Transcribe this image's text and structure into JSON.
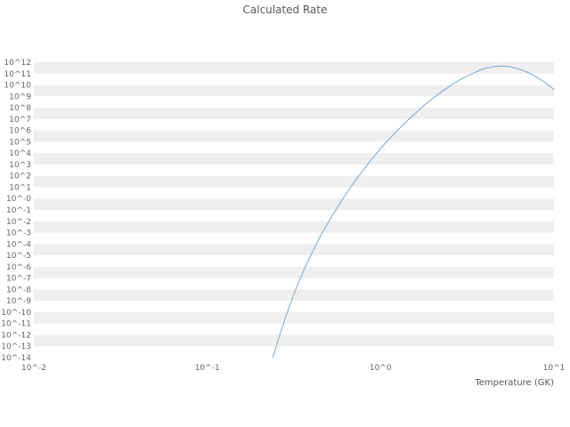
{
  "title": "Calculated Rate",
  "colors": {
    "background": "#ffffff",
    "band": "#efefef",
    "title_text": "#595959",
    "tick_text": "#666666",
    "line": "#74a9d8"
  },
  "chart_data": {
    "type": "line",
    "title": "Calculated Rate",
    "xlabel": "Temperature (GK)",
    "ylabel": "",
    "x_scale": "log10",
    "y_scale": "log10",
    "x_range_log10": [
      -2,
      1
    ],
    "y_range_log10": [
      -14,
      12
    ],
    "x_ticks_log10": [
      -2,
      -1,
      0,
      1
    ],
    "x_tick_labels": [
      "10^-2",
      "10^-1",
      "10^0",
      "10^1"
    ],
    "y_ticks_log10": [
      12,
      11,
      10,
      9,
      8,
      7,
      6,
      5,
      4,
      3,
      2,
      1,
      0,
      -1,
      -2,
      -3,
      -4,
      -5,
      -6,
      -7,
      -8,
      -9,
      -10,
      -11,
      -12,
      -13,
      -14
    ],
    "y_tick_labels": [
      "10^12",
      "10^11",
      "10^10",
      "10^9",
      "10^8",
      "10^7",
      "10^6",
      "10^5",
      "10^4",
      "10^3",
      "10^2",
      "10^1",
      "10^-0",
      "10^-1",
      "10^-2",
      "10^-3",
      "10^-4",
      "10^-5",
      "10^-6",
      "10^-7",
      "10^-8",
      "10^-9",
      "10^-10",
      "10^-11",
      "10^-12",
      "10^-13",
      "10^-14"
    ],
    "grid": "horizontal-alternating-bands",
    "legend": "none",
    "series": [
      {
        "name": "Calculated Rate",
        "color": "#74a9d8",
        "points_log10": [
          [
            -0.625,
            -14.2
          ],
          [
            -0.6,
            -12.9
          ],
          [
            -0.575,
            -11.7
          ],
          [
            -0.55,
            -10.55
          ],
          [
            -0.525,
            -9.45
          ],
          [
            -0.5,
            -8.4
          ],
          [
            -0.475,
            -7.45
          ],
          [
            -0.45,
            -6.55
          ],
          [
            -0.425,
            -5.7
          ],
          [
            -0.4,
            -4.9
          ],
          [
            -0.375,
            -4.15
          ],
          [
            -0.35,
            -3.4
          ],
          [
            -0.325,
            -2.7
          ],
          [
            -0.3,
            -2.05
          ],
          [
            -0.275,
            -1.4
          ],
          [
            -0.25,
            -0.8
          ],
          [
            -0.225,
            -0.2
          ],
          [
            -0.2,
            0.4
          ],
          [
            -0.175,
            0.95
          ],
          [
            -0.15,
            1.5
          ],
          [
            -0.125,
            2.0
          ],
          [
            -0.1,
            2.5
          ],
          [
            -0.075,
            3.0
          ],
          [
            -0.05,
            3.5
          ],
          [
            -0.025,
            3.95
          ],
          [
            0.0,
            4.4
          ],
          [
            0.05,
            5.25
          ],
          [
            0.1,
            6.05
          ],
          [
            0.15,
            6.8
          ],
          [
            0.2,
            7.5
          ],
          [
            0.25,
            8.2
          ],
          [
            0.3,
            8.8
          ],
          [
            0.35,
            9.4
          ],
          [
            0.4,
            9.9
          ],
          [
            0.45,
            10.4
          ],
          [
            0.5,
            10.8
          ],
          [
            0.55,
            11.15
          ],
          [
            0.6,
            11.45
          ],
          [
            0.65,
            11.62
          ],
          [
            0.7,
            11.68
          ],
          [
            0.75,
            11.6
          ],
          [
            0.8,
            11.4
          ],
          [
            0.85,
            11.1
          ],
          [
            0.9,
            10.7
          ],
          [
            0.95,
            10.2
          ],
          [
            1.0,
            9.6
          ]
        ]
      }
    ]
  }
}
